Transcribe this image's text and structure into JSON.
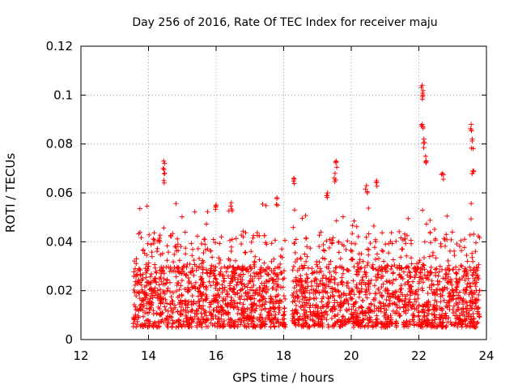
{
  "chart_data": {
    "type": "scatter",
    "title": "Day 256 of 2016, Rate Of TEC Index for receiver maju",
    "xlabel": "GPS time / hours",
    "ylabel": "ROTI / TECUs",
    "xlim": [
      12,
      24
    ],
    "ylim": [
      0,
      0.12
    ],
    "xticks": [
      12,
      14,
      16,
      18,
      20,
      22,
      24
    ],
    "xtick_labels": [
      "12",
      "14",
      "16",
      "18",
      "20",
      "22",
      "24"
    ],
    "yticks": [
      0,
      0.02,
      0.04,
      0.06,
      0.08,
      0.1,
      0.12
    ],
    "ytick_labels": [
      "0",
      "0.02",
      "0.04",
      "0.06",
      "0.08",
      "0.1",
      "0.12"
    ],
    "grid": true,
    "marker": "+",
    "color": "#ff0000",
    "data_range_x": [
      13.55,
      23.8
    ],
    "gap_x": [
      18.05,
      18.25
    ],
    "typical_band_y": [
      0.005,
      0.03
    ],
    "notable_points": [
      {
        "x": 14.45,
        "y": 0.073
      },
      {
        "x": 14.48,
        "y": 0.068
      },
      {
        "x": 16.0,
        "y": 0.055
      },
      {
        "x": 16.45,
        "y": 0.056
      },
      {
        "x": 17.8,
        "y": 0.058
      },
      {
        "x": 18.3,
        "y": 0.066
      },
      {
        "x": 19.3,
        "y": 0.06
      },
      {
        "x": 19.55,
        "y": 0.073
      },
      {
        "x": 19.52,
        "y": 0.068
      },
      {
        "x": 20.45,
        "y": 0.063
      },
      {
        "x": 20.75,
        "y": 0.065
      },
      {
        "x": 22.1,
        "y": 0.104
      },
      {
        "x": 22.12,
        "y": 0.1
      },
      {
        "x": 22.1,
        "y": 0.088
      },
      {
        "x": 22.15,
        "y": 0.082
      },
      {
        "x": 22.2,
        "y": 0.075
      },
      {
        "x": 22.7,
        "y": 0.068
      },
      {
        "x": 23.55,
        "y": 0.088
      },
      {
        "x": 23.58,
        "y": 0.082
      },
      {
        "x": 23.6,
        "y": 0.069
      }
    ]
  }
}
